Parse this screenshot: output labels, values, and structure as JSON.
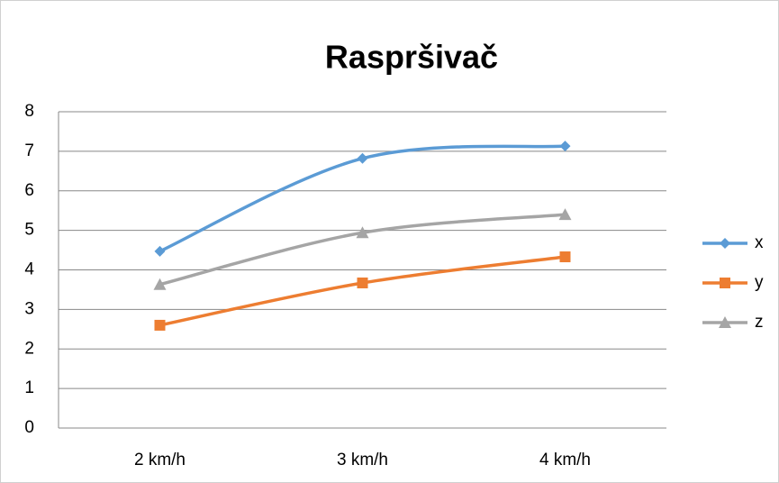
{
  "chart_data": {
    "type": "line",
    "title": "Raspršivač",
    "categories": [
      "2 km/h",
      "3 km/h",
      "4 km/h"
    ],
    "series": [
      {
        "name": "x",
        "color": "#5b9bd5",
        "marker": "diamond",
        "values": [
          4.47,
          6.82,
          7.13
        ]
      },
      {
        "name": "y",
        "color": "#ed7d31",
        "marker": "square",
        "values": [
          2.6,
          3.67,
          4.33
        ]
      },
      {
        "name": "z",
        "color": "#a5a5a5",
        "marker": "triangle",
        "values": [
          3.63,
          4.94,
          5.4
        ]
      }
    ],
    "ylim": [
      0,
      8
    ],
    "yticks": [
      0,
      1,
      2,
      3,
      4,
      5,
      6,
      7,
      8
    ],
    "grid": true,
    "smooth": true,
    "legend": "right"
  }
}
